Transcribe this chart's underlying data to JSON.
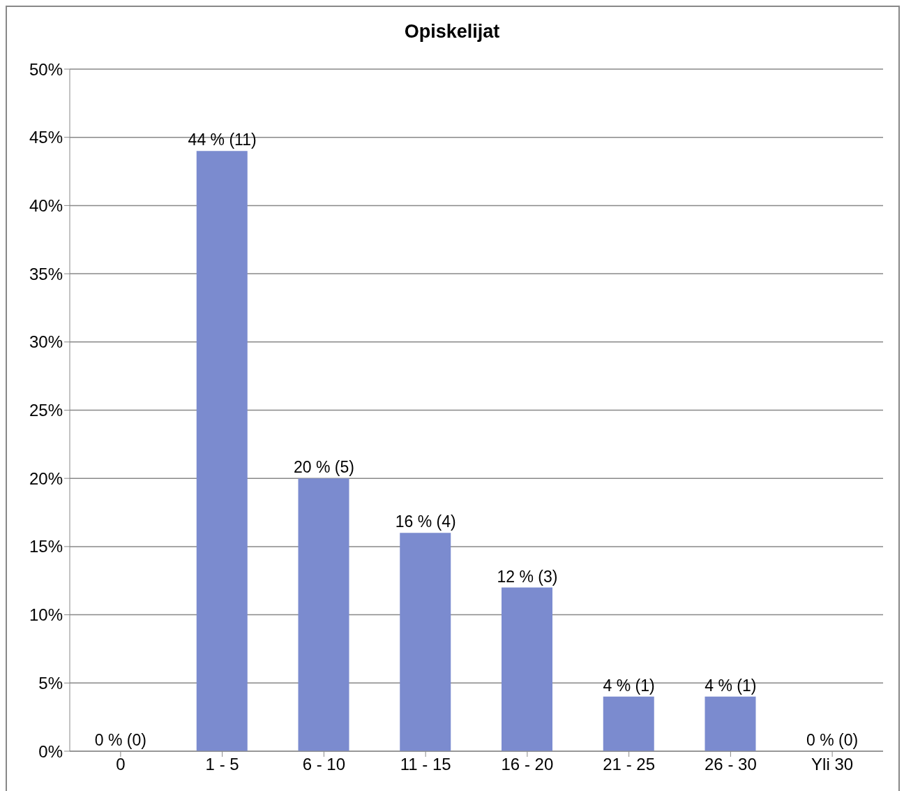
{
  "chart_data": {
    "type": "bar",
    "title": "Opiskelijat",
    "categories": [
      "0",
      "1 - 5",
      "6 - 10",
      "11 - 15",
      "16 - 20",
      "21 - 25",
      "26 - 30",
      "Yli 30"
    ],
    "values": [
      0,
      44,
      20,
      16,
      12,
      4,
      4,
      0
    ],
    "value_labels": [
      "0 % (0)",
      "44 % (11)",
      "20 % (5)",
      "16 % (4)",
      "12 % (3)",
      "4 % (1)",
      "4 % (1)",
      "0 % (0)"
    ],
    "color": "#7b8bcf",
    "ylim": [
      0,
      50
    ],
    "yticks": [
      {
        "value": 0,
        "label": "0%"
      },
      {
        "value": 5,
        "label": "5%"
      },
      {
        "value": 10,
        "label": "10%"
      },
      {
        "value": 15,
        "label": "15%"
      },
      {
        "value": 20,
        "label": "20%"
      },
      {
        "value": 25,
        "label": "25%"
      },
      {
        "value": 30,
        "label": "30%"
      },
      {
        "value": 35,
        "label": "35%"
      },
      {
        "value": 40,
        "label": "40%"
      },
      {
        "value": 45,
        "label": "45%"
      },
      {
        "value": 50,
        "label": "50%"
      }
    ],
    "grid": "y"
  }
}
